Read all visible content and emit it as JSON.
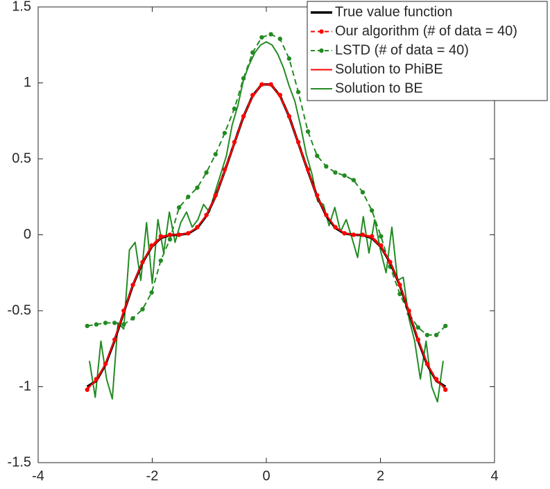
{
  "chart_data": {
    "type": "line",
    "xlim": [
      -4,
      4
    ],
    "xticks": [
      -4,
      -2,
      0,
      2,
      4
    ],
    "ylim": [
      -1.5,
      1.5
    ],
    "yticks": [
      -1.5,
      -1,
      -0.5,
      0,
      0.5,
      1,
      1.5
    ],
    "grid": false,
    "legend": "upper right",
    "series": [
      {
        "name": "True value function",
        "color": "#000000",
        "line": "solid",
        "marker": false,
        "line_width": 3.5,
        "x": [
          -3.14,
          -2.98,
          -2.82,
          -2.66,
          -2.5,
          -2.34,
          -2.17,
          -2.01,
          -1.85,
          -1.69,
          -1.53,
          -1.37,
          -1.21,
          -1.05,
          -0.89,
          -0.73,
          -0.56,
          -0.4,
          -0.24,
          -0.08,
          0.08,
          0.24,
          0.4,
          0.56,
          0.73,
          0.89,
          1.05,
          1.21,
          1.37,
          1.53,
          1.69,
          1.85,
          2.01,
          2.17,
          2.34,
          2.5,
          2.66,
          2.82,
          2.98,
          3.14
        ],
        "values": [
          -1,
          -0.962,
          -0.855,
          -0.696,
          -0.511,
          -0.333,
          -0.183,
          -0.08,
          -0.022,
          -0.002,
          0,
          0.008,
          0.045,
          0.125,
          0.253,
          0.42,
          0.604,
          0.779,
          0.915,
          0.99,
          0.99,
          0.915,
          0.779,
          0.604,
          0.42,
          0.253,
          0.125,
          0.045,
          0.008,
          0,
          -0.002,
          -0.022,
          -0.08,
          -0.183,
          -0.333,
          -0.511,
          -0.696,
          -0.855,
          -0.962,
          -1
        ]
      },
      {
        "name": "Our algorithm (# of data = 40)",
        "color": "#ff0000",
        "line": "dashed",
        "marker": true,
        "line_width": 2,
        "x": [
          -3.14,
          -2.98,
          -2.82,
          -2.66,
          -2.5,
          -2.34,
          -2.17,
          -2.01,
          -1.85,
          -1.69,
          -1.53,
          -1.37,
          -1.21,
          -1.05,
          -0.89,
          -0.73,
          -0.56,
          -0.4,
          -0.24,
          -0.08,
          0.08,
          0.24,
          0.4,
          0.56,
          0.73,
          0.89,
          1.05,
          1.21,
          1.37,
          1.53,
          1.69,
          1.85,
          2.01,
          2.17,
          2.34,
          2.5,
          2.66,
          2.82,
          2.98,
          3.14
        ],
        "values": [
          -1.02,
          -0.95,
          -0.85,
          -0.69,
          -0.5,
          -0.33,
          -0.18,
          -0.07,
          -0.01,
          0,
          0,
          0.01,
          0.05,
          0.13,
          0.26,
          0.43,
          0.61,
          0.78,
          0.92,
          0.99,
          0.99,
          0.92,
          0.78,
          0.61,
          0.43,
          0.26,
          0.13,
          0.05,
          0.01,
          0,
          0,
          -0.01,
          -0.07,
          -0.18,
          -0.33,
          -0.5,
          -0.69,
          -0.85,
          -0.95,
          -1.02
        ]
      },
      {
        "name": "LSTD (# of data = 40)",
        "color": "#228b22",
        "line": "dashed",
        "marker": true,
        "line_width": 2,
        "x": [
          -3.14,
          -2.98,
          -2.82,
          -2.66,
          -2.5,
          -2.34,
          -2.17,
          -2.01,
          -1.85,
          -1.69,
          -1.53,
          -1.37,
          -1.21,
          -1.05,
          -0.89,
          -0.73,
          -0.56,
          -0.4,
          -0.24,
          -0.08,
          0.08,
          0.24,
          0.4,
          0.56,
          0.73,
          0.89,
          1.05,
          1.21,
          1.37,
          1.53,
          1.69,
          1.85,
          2.01,
          2.17,
          2.34,
          2.5,
          2.66,
          2.82,
          2.98,
          3.14
        ],
        "values": [
          -0.6,
          -0.59,
          -0.58,
          -0.58,
          -0.59,
          -0.55,
          -0.49,
          -0.38,
          -0.17,
          -0.03,
          0.18,
          0.25,
          0.31,
          0.41,
          0.53,
          0.67,
          0.83,
          1.03,
          1.2,
          1.3,
          1.32,
          1.29,
          1.16,
          0.94,
          0.68,
          0.52,
          0.45,
          0.41,
          0.39,
          0.36,
          0.28,
          0.16,
          -0.01,
          -0.21,
          -0.39,
          -0.52,
          -0.61,
          -0.66,
          -0.66,
          -0.6
        ]
      },
      {
        "name": "Solution to PhiBE",
        "color": "#ff0000",
        "line": "solid",
        "marker": false,
        "line_width": 2,
        "x": [
          -3.14,
          -2.98,
          -2.82,
          -2.66,
          -2.5,
          -2.34,
          -2.17,
          -2.01,
          -1.85,
          -1.69,
          -1.53,
          -1.37,
          -1.21,
          -1.05,
          -0.89,
          -0.73,
          -0.56,
          -0.4,
          -0.24,
          -0.08,
          0.08,
          0.24,
          0.4,
          0.56,
          0.73,
          0.89,
          1.05,
          1.21,
          1.37,
          1.53,
          1.69,
          1.85,
          2.01,
          2.17,
          2.34,
          2.5,
          2.66,
          2.82,
          2.98,
          3.14
        ],
        "values": [
          -1.01,
          -0.96,
          -0.85,
          -0.69,
          -0.51,
          -0.33,
          -0.18,
          -0.08,
          -0.02,
          0,
          0,
          0.01,
          0.05,
          0.13,
          0.25,
          0.42,
          0.6,
          0.78,
          0.91,
          0.99,
          0.99,
          0.91,
          0.78,
          0.6,
          0.42,
          0.25,
          0.13,
          0.05,
          0.01,
          0,
          0,
          -0.02,
          -0.08,
          -0.18,
          -0.33,
          -0.51,
          -0.69,
          -0.85,
          -0.96,
          -1.01
        ]
      },
      {
        "name": "Solution to BE",
        "color": "#228b22",
        "line": "solid",
        "marker": false,
        "line_width": 2,
        "x": [
          -3.1,
          -3,
          -2.9,
          -2.8,
          -2.7,
          -2.6,
          -2.5,
          -2.4,
          -2.3,
          -2.2,
          -2.1,
          -2,
          -1.9,
          -1.8,
          -1.7,
          -1.6,
          -1.5,
          -1.4,
          -1.3,
          -1.2,
          -1.1,
          -1,
          -0.9,
          -0.8,
          -0.7,
          -0.6,
          -0.5,
          -0.4,
          -0.3,
          -0.2,
          -0.1,
          0,
          0.1,
          0.2,
          0.3,
          0.4,
          0.5,
          0.6,
          0.7,
          0.8,
          0.9,
          1,
          1.1,
          1.2,
          1.3,
          1.4,
          1.5,
          1.6,
          1.7,
          1.8,
          1.9,
          2,
          2.1,
          2.2,
          2.3,
          2.4,
          2.5,
          2.6,
          2.7,
          2.8,
          2.9,
          3,
          3.1
        ],
        "values": [
          -0.83,
          -1.07,
          -0.7,
          -0.95,
          -1.08,
          -0.58,
          -0.62,
          -0.1,
          -0.05,
          -0.3,
          0.08,
          -0.32,
          0.1,
          -0.12,
          0.15,
          -0.05,
          0.08,
          0.15,
          0.05,
          0.1,
          0.2,
          0.15,
          0.28,
          0.4,
          0.52,
          0.72,
          0.85,
          1.02,
          1.12,
          1.2,
          1.25,
          1.27,
          1.25,
          1.19,
          1.1,
          0.98,
          0.88,
          0.72,
          0.53,
          0.4,
          0.22,
          0.2,
          0.06,
          0.18,
          0.02,
          0.1,
          -0.02,
          -0.15,
          0.12,
          -0.12,
          0.1,
          -0.1,
          -0.25,
          0.05,
          -0.3,
          -0.28,
          -0.55,
          -0.7,
          -0.95,
          -0.7,
          -1,
          -1.1,
          -0.83
        ]
      }
    ]
  }
}
